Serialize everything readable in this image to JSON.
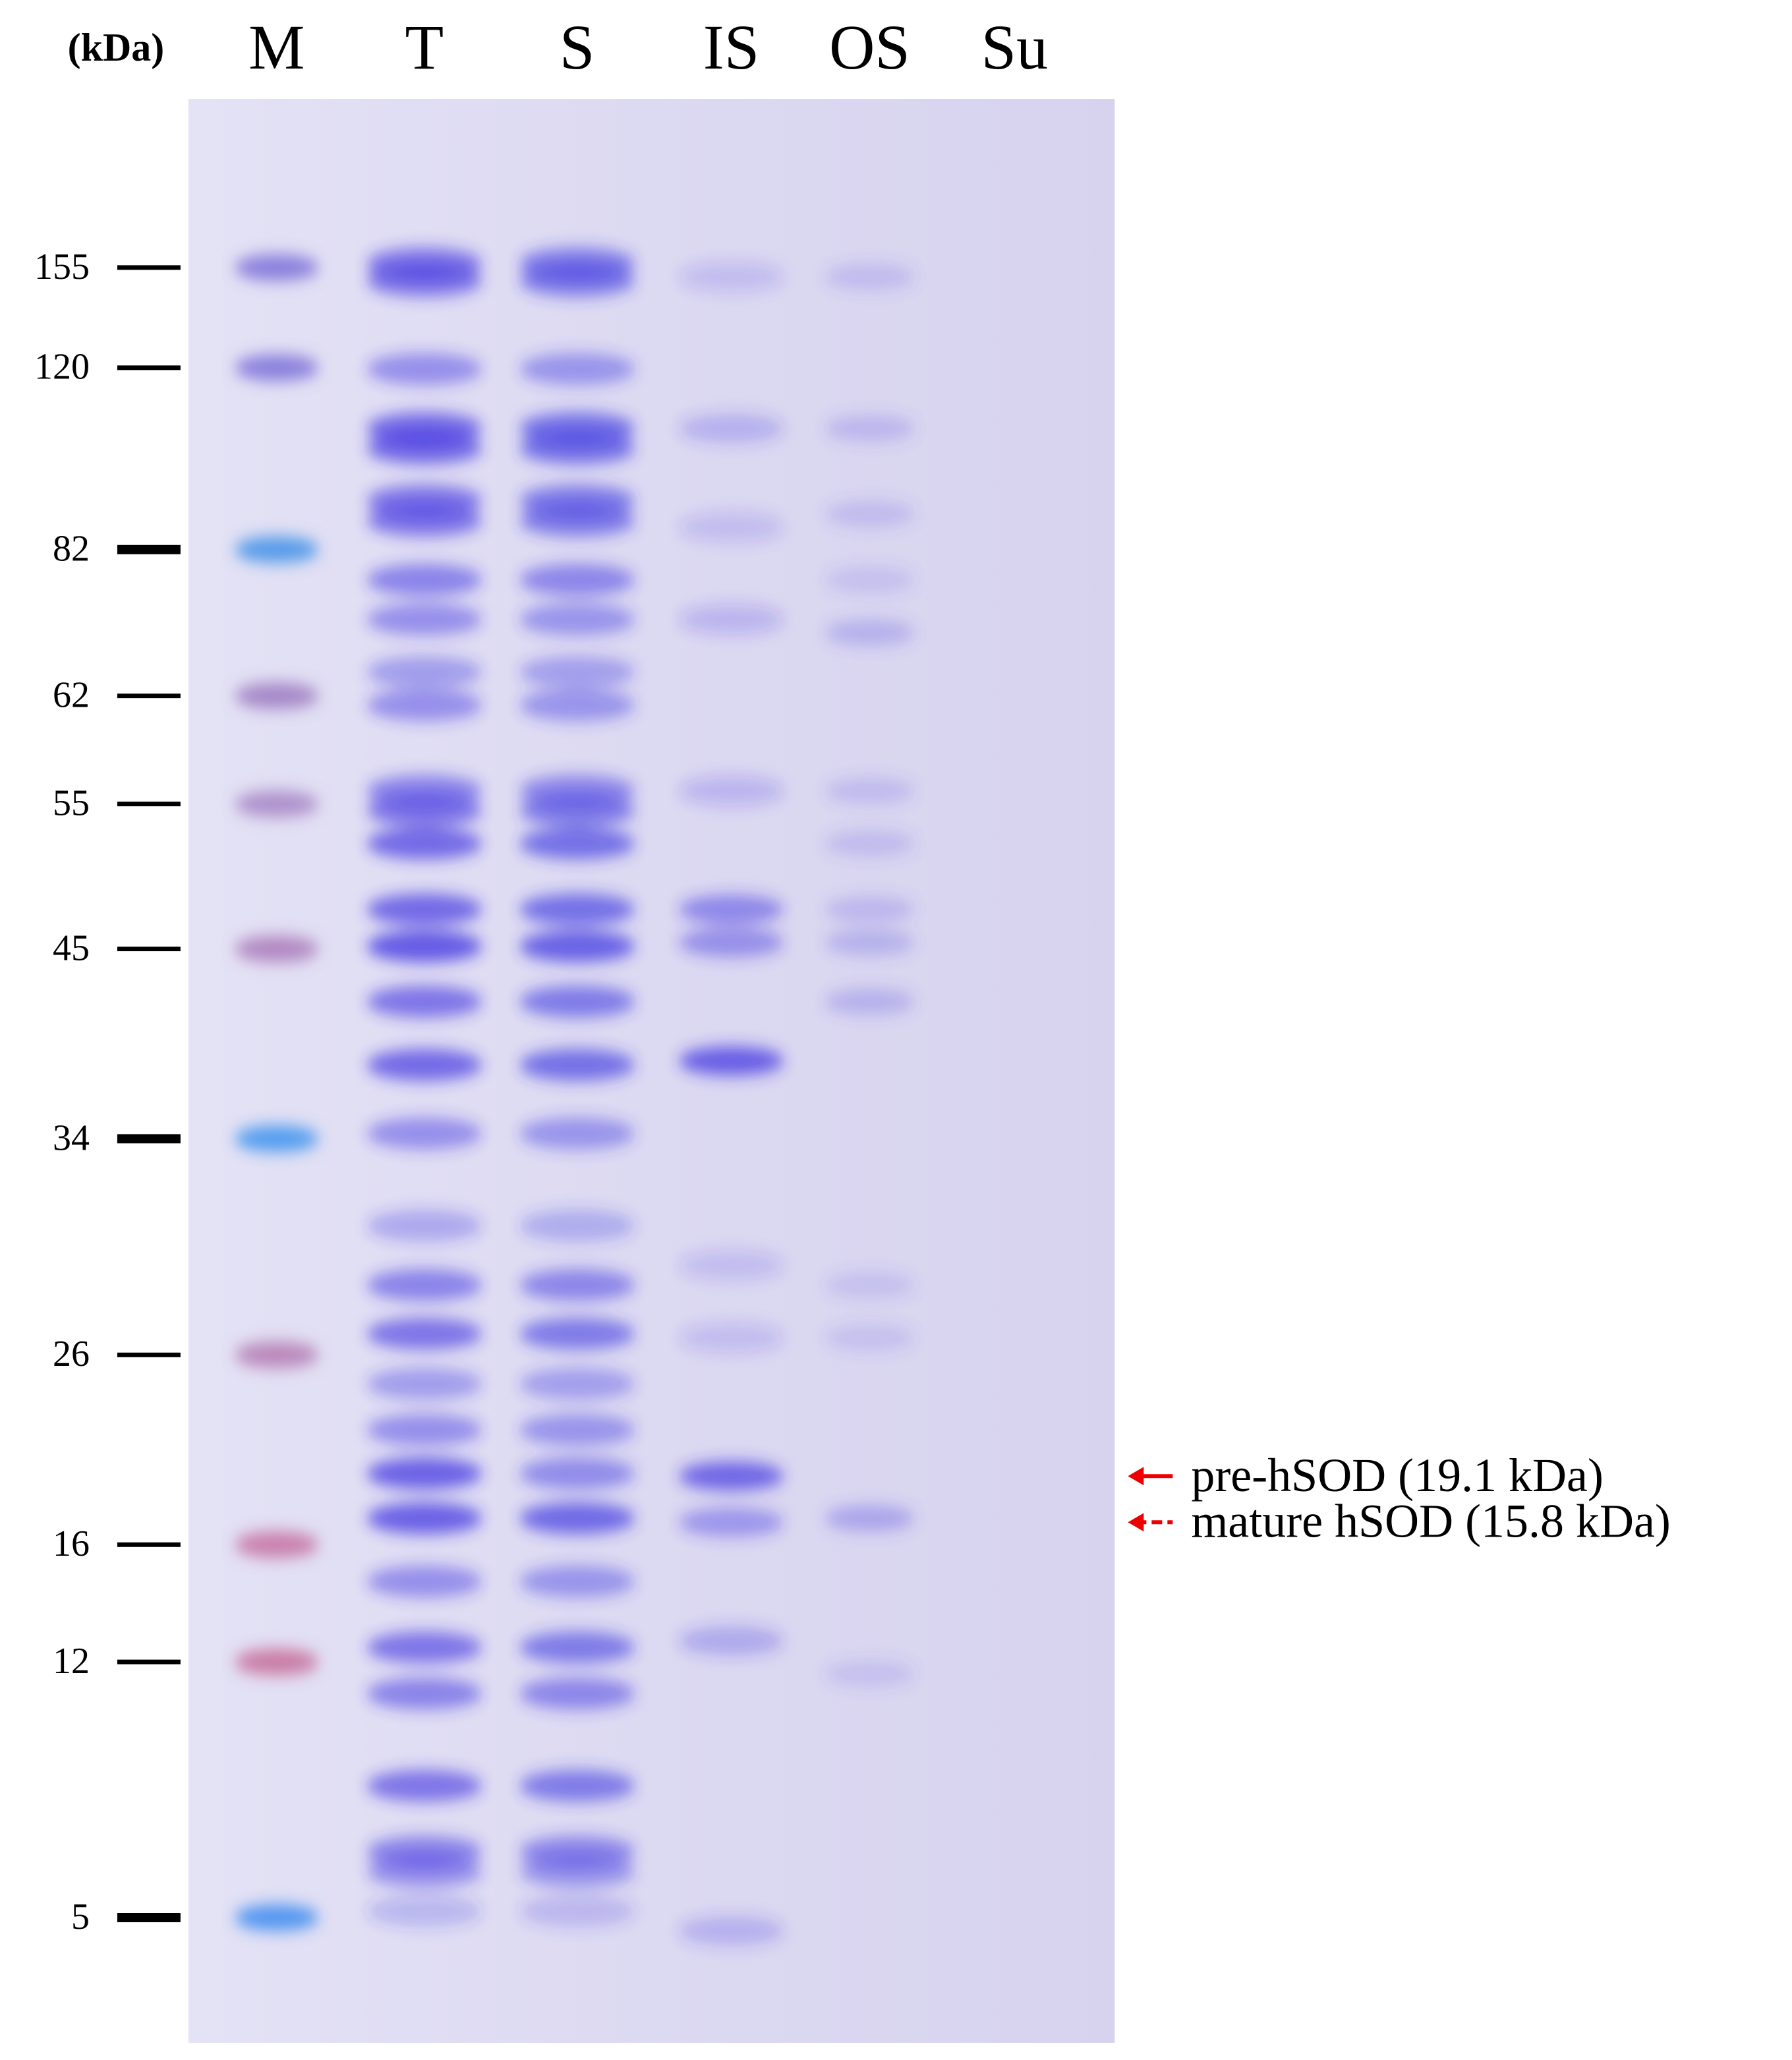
{
  "unit_label": "(kDa)",
  "lanes": [
    "M",
    "T",
    "S",
    "IS",
    "OS",
    "Su"
  ],
  "markers": [
    "155",
    "120",
    "82",
    "62",
    "55",
    "45",
    "34",
    "26",
    "16",
    "12",
    "5"
  ],
  "annotations": [
    "pre-hSOD (19.1 kDa)",
    "mature hSOD (15.8 kDa)"
  ]
}
